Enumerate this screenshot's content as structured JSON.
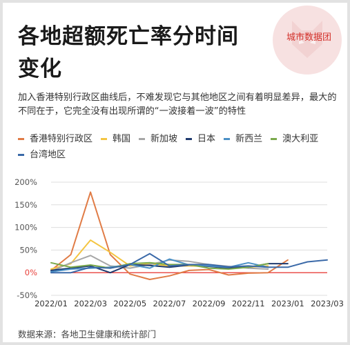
{
  "header": {
    "title_line1": "各地超额死亡率分时间",
    "title_line2": "变化",
    "logo_text": "城市数据团"
  },
  "subtitle": "加入香港特别行政区曲线后，不难发现它与其他地区之间有着明显差异，最大的不同在于，它完全没有出现所谓的“一波接着一波”的特性",
  "source": "数据来源：各地卫生健康和统计部门",
  "colors": {
    "accent_logo": "#d3302a",
    "grid": "#dddddd",
    "zero_line": "#e8413b"
  },
  "chart_data": {
    "type": "line",
    "title": "",
    "xlabel": "",
    "ylabel": "",
    "x": [
      "2022/01",
      "2022/02",
      "2022/03",
      "2022/04",
      "2022/05",
      "2022/06",
      "2022/07",
      "2022/08",
      "2022/09",
      "2022/10",
      "2022/11",
      "2022/12",
      "2023/01",
      "2023/02",
      "2023/03"
    ],
    "x_tick_labels": [
      "2022/01",
      "2022/03",
      "2022/05",
      "2022/07",
      "2022/09",
      "2022/11",
      "2023/01",
      "2023/03"
    ],
    "ylim": [
      -50,
      200
    ],
    "y_ticks": [
      -50,
      0,
      50,
      100,
      150,
      200
    ],
    "y_tick_labels": [
      "-50%",
      "0%",
      "50%",
      "100%",
      "150%",
      "200%"
    ],
    "grid": true,
    "legend_position": "top",
    "series": [
      {
        "name": "香港特别行政区",
        "color": "#e07b45",
        "values": [
          5,
          40,
          178,
          40,
          -3,
          -15,
          -7,
          5,
          7,
          -5,
          -1,
          0,
          28,
          null,
          null
        ]
      },
      {
        "name": "韩国",
        "color": "#f4c542",
        "values": [
          8,
          20,
          72,
          45,
          15,
          20,
          15,
          15,
          14,
          12,
          12,
          15,
          null,
          null,
          null
        ]
      },
      {
        "name": "新加坡",
        "color": "#a6a6a6",
        "values": [
          3,
          22,
          38,
          15,
          10,
          18,
          28,
          25,
          18,
          14,
          10,
          8,
          null,
          null,
          null
        ]
      },
      {
        "name": "日本",
        "color": "#1f3a6e",
        "values": [
          5,
          10,
          15,
          0,
          18,
          16,
          12,
          17,
          14,
          10,
          12,
          20,
          20,
          null,
          null
        ]
      },
      {
        "name": "新西兰",
        "color": "#4a90c6",
        "values": [
          2,
          8,
          10,
          12,
          18,
          10,
          30,
          17,
          15,
          12,
          22,
          12,
          null,
          null,
          null
        ]
      },
      {
        "name": "澳大利亚",
        "color": "#7aa94b",
        "values": [
          22,
          12,
          17,
          10,
          20,
          22,
          18,
          18,
          10,
          8,
          12,
          20,
          null,
          null,
          null
        ]
      },
      {
        "name": "台湾地区",
        "color": "#3a69a8",
        "values": [
          0,
          0,
          12,
          10,
          18,
          42,
          15,
          18,
          18,
          13,
          15,
          12,
          12,
          24,
          28
        ]
      }
    ]
  }
}
